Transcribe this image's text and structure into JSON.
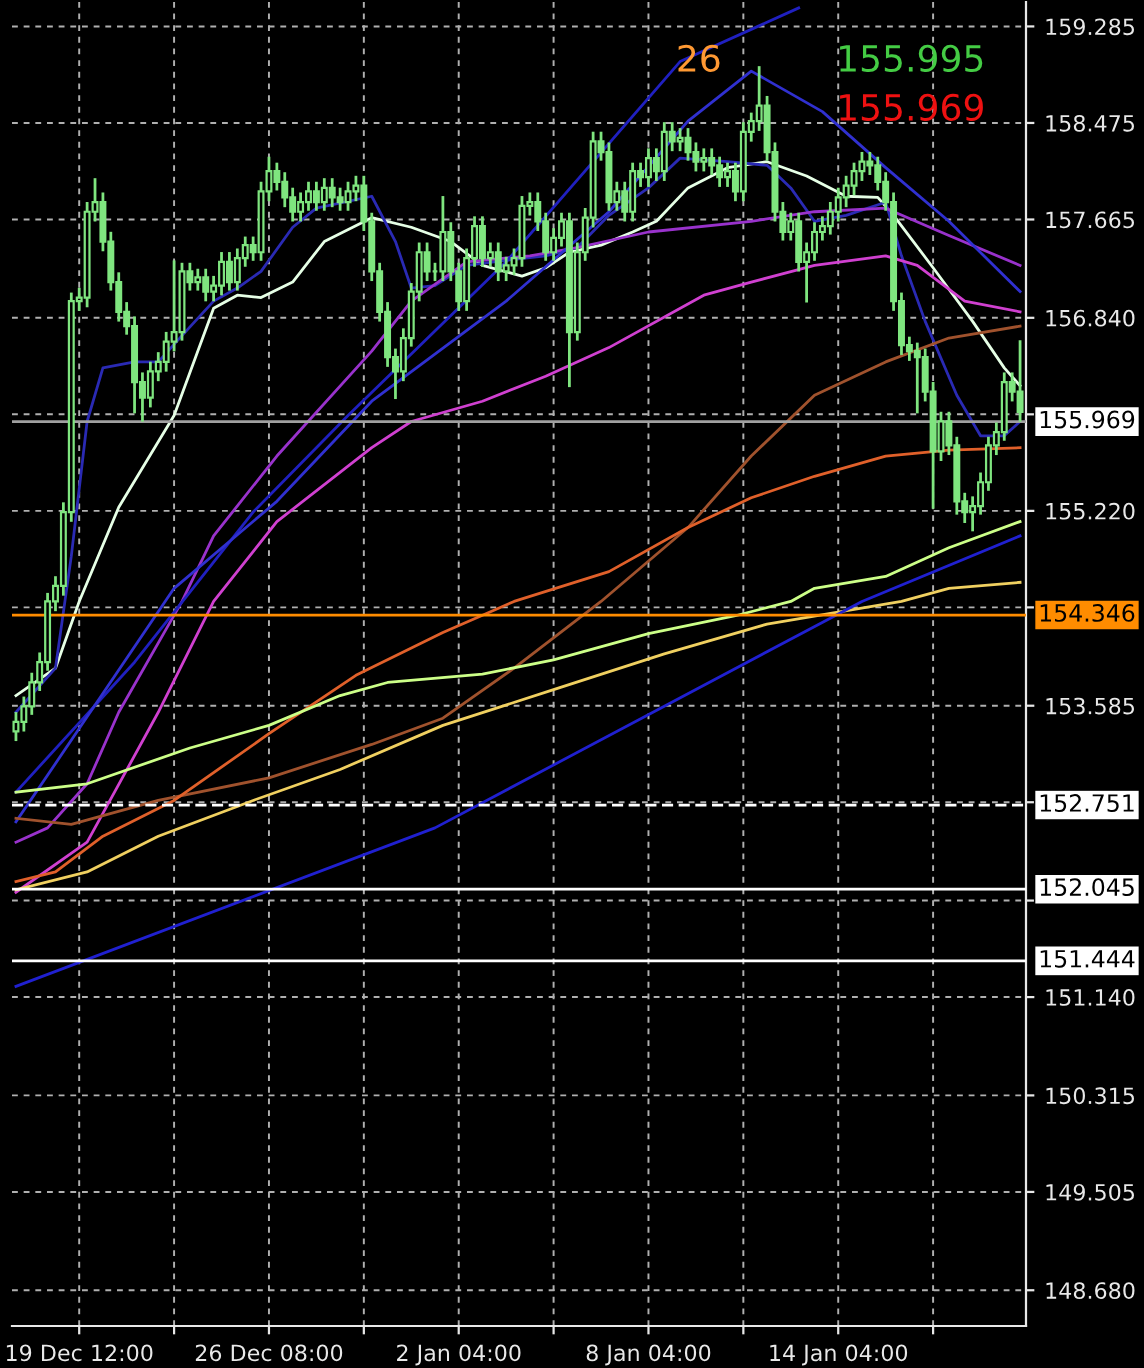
{
  "chart_data": {
    "type": "candlestick",
    "color": "#7fe57f",
    "categories": [
      null,
      null,
      null,
      null,
      null,
      null,
      null,
      null,
      "19 Dec 12:00",
      null,
      null,
      null,
      null,
      null,
      null,
      null,
      null,
      null,
      null,
      null,
      null,
      null,
      null,
      null,
      null,
      null,
      null,
      null,
      null,
      null,
      null,
      null,
      "26 Dec 08:00",
      null,
      null,
      null,
      null,
      null,
      null,
      null,
      null,
      null,
      null,
      null,
      null,
      null,
      null,
      null,
      null,
      null,
      null,
      null,
      null,
      null,
      null,
      null,
      "2 Jan 04:00",
      null,
      null,
      null,
      null,
      null,
      null,
      null,
      null,
      null,
      null,
      null,
      null,
      null,
      null,
      null,
      null,
      null,
      null,
      null,
      null,
      null,
      null,
      null,
      "8 Jan 04:00",
      null,
      null,
      null,
      null,
      null,
      null,
      null,
      null,
      null,
      null,
      null,
      null,
      null,
      null,
      null,
      null,
      null,
      null,
      null,
      null,
      null,
      null,
      null,
      "14 Jan 04:00",
      null,
      null,
      null,
      null,
      null,
      null,
      null,
      null,
      null,
      null,
      null,
      null,
      null,
      null,
      null,
      null,
      null,
      null,
      null,
      null,
      null,
      null,
      null
    ],
    "ohlc": [
      [
        153.37,
        153.52,
        153.3,
        153.45
      ],
      [
        153.45,
        153.65,
        153.38,
        153.58
      ],
      [
        153.58,
        153.85,
        153.52,
        153.78
      ],
      [
        153.78,
        154.02,
        153.72,
        153.95
      ],
      [
        153.95,
        154.52,
        153.89,
        154.46
      ],
      [
        154.46,
        154.66,
        154.39,
        154.59
      ],
      [
        154.59,
        155.28,
        154.52,
        155.21
      ],
      [
        155.21,
        157.04,
        155.14,
        156.98
      ],
      [
        156.98,
        157.08,
        156.91,
        157.01
      ],
      [
        157.01,
        157.8,
        156.94,
        157.73
      ],
      [
        157.73,
        158.0,
        157.66,
        157.81
      ],
      [
        157.81,
        157.88,
        157.41,
        157.48
      ],
      [
        157.48,
        157.55,
        157.08,
        157.14
      ],
      [
        157.14,
        157.21,
        156.82,
        156.89
      ],
      [
        156.89,
        156.96,
        156.71,
        156.77
      ],
      [
        156.77,
        156.84,
        156.05,
        156.3
      ],
      [
        156.3,
        156.37,
        155.98,
        156.17
      ],
      [
        156.17,
        156.46,
        156.1,
        156.39
      ],
      [
        156.39,
        156.54,
        156.32,
        156.47
      ],
      [
        156.47,
        156.71,
        156.4,
        156.64
      ],
      [
        156.64,
        157.31,
        156.57,
        156.72
      ],
      [
        156.72,
        157.29,
        156.66,
        157.23
      ],
      [
        157.23,
        157.29,
        157.08,
        157.14
      ],
      [
        157.14,
        157.24,
        157.08,
        157.18
      ],
      [
        157.18,
        157.24,
        156.99,
        157.06
      ],
      [
        157.06,
        157.18,
        156.99,
        157.11
      ],
      [
        157.11,
        157.38,
        157.04,
        157.31
      ],
      [
        157.31,
        157.38,
        157.08,
        157.14
      ],
      [
        157.14,
        157.41,
        157.08,
        157.34
      ],
      [
        157.34,
        157.51,
        157.28,
        157.45
      ],
      [
        157.45,
        157.51,
        157.33,
        157.39
      ],
      [
        157.39,
        157.97,
        157.33,
        157.9
      ],
      [
        157.9,
        158.18,
        157.83,
        158.07
      ],
      [
        158.07,
        158.13,
        157.92,
        157.98
      ],
      [
        157.98,
        158.05,
        157.78,
        157.85
      ],
      [
        157.85,
        157.92,
        157.66,
        157.73
      ],
      [
        157.73,
        157.88,
        157.66,
        157.81
      ],
      [
        157.81,
        157.97,
        157.75,
        157.9
      ],
      [
        157.9,
        157.97,
        157.75,
        157.81
      ],
      [
        157.81,
        158.0,
        157.75,
        157.93
      ],
      [
        157.93,
        158.0,
        157.78,
        157.85
      ],
      [
        157.85,
        157.92,
        157.75,
        157.81
      ],
      [
        157.81,
        157.97,
        157.75,
        157.9
      ],
      [
        157.9,
        158.02,
        157.83,
        157.95
      ],
      [
        157.95,
        158.02,
        157.58,
        157.65
      ],
      [
        157.65,
        157.71,
        157.16,
        157.23
      ],
      [
        157.23,
        157.29,
        156.82,
        156.89
      ],
      [
        156.89,
        156.96,
        156.44,
        156.51
      ],
      [
        156.51,
        156.57,
        156.17,
        156.39
      ],
      [
        156.39,
        156.74,
        156.32,
        156.67
      ],
      [
        156.67,
        157.12,
        156.61,
        157.06
      ],
      [
        157.06,
        157.46,
        156.99,
        157.39
      ],
      [
        157.39,
        157.46,
        157.16,
        157.23
      ],
      [
        157.23,
        157.29,
        157.16,
        157.23
      ],
      [
        157.23,
        157.85,
        157.16,
        157.56
      ],
      [
        157.56,
        157.63,
        157.16,
        157.23
      ],
      [
        157.23,
        157.29,
        156.91,
        156.98
      ],
      [
        156.98,
        157.41,
        156.91,
        157.34
      ],
      [
        157.34,
        157.68,
        157.28,
        157.61
      ],
      [
        157.61,
        157.68,
        157.28,
        157.34
      ],
      [
        157.34,
        157.46,
        157.28,
        157.39
      ],
      [
        157.39,
        157.46,
        157.16,
        157.23
      ],
      [
        157.23,
        157.34,
        157.16,
        157.28
      ],
      [
        157.28,
        157.41,
        157.21,
        157.34
      ],
      [
        157.34,
        157.85,
        157.28,
        157.78
      ],
      [
        157.78,
        157.88,
        157.71,
        157.81
      ],
      [
        157.81,
        157.88,
        157.58,
        157.65
      ],
      [
        157.65,
        157.71,
        157.33,
        157.39
      ],
      [
        157.39,
        157.58,
        157.33,
        157.51
      ],
      [
        157.51,
        157.71,
        157.45,
        157.65
      ],
      [
        157.65,
        157.71,
        156.27,
        156.72
      ],
      [
        156.72,
        157.46,
        156.66,
        157.39
      ],
      [
        157.39,
        157.75,
        157.33,
        157.68
      ],
      [
        157.68,
        158.39,
        157.61,
        158.32
      ],
      [
        158.32,
        158.39,
        158.17,
        158.23
      ],
      [
        158.23,
        158.3,
        157.75,
        157.81
      ],
      [
        157.81,
        157.97,
        157.75,
        157.9
      ],
      [
        157.9,
        157.97,
        157.66,
        157.73
      ],
      [
        157.73,
        158.13,
        157.66,
        158.07
      ],
      [
        158.07,
        158.13,
        157.95,
        158.02
      ],
      [
        158.02,
        158.25,
        157.95,
        158.18
      ],
      [
        158.18,
        158.25,
        158.0,
        158.07
      ],
      [
        158.07,
        158.47,
        158.0,
        158.4
      ],
      [
        158.4,
        158.47,
        158.25,
        158.32
      ],
      [
        158.32,
        158.42,
        158.25,
        158.35
      ],
      [
        158.35,
        158.42,
        158.17,
        158.23
      ],
      [
        158.23,
        158.3,
        158.08,
        158.15
      ],
      [
        158.15,
        158.25,
        158.08,
        158.18
      ],
      [
        158.18,
        158.25,
        158.05,
        158.12
      ],
      [
        158.12,
        158.18,
        157.95,
        158.02
      ],
      [
        158.02,
        158.13,
        157.95,
        158.07
      ],
      [
        158.07,
        158.13,
        157.83,
        157.9
      ],
      [
        157.9,
        158.47,
        157.83,
        158.4
      ],
      [
        158.4,
        158.55,
        158.33,
        158.49
      ],
      [
        158.49,
        158.94,
        158.42,
        158.62
      ],
      [
        158.62,
        158.69,
        158.17,
        158.23
      ],
      [
        158.23,
        158.3,
        157.66,
        157.73
      ],
      [
        157.73,
        157.8,
        157.5,
        157.56
      ],
      [
        157.56,
        157.71,
        157.5,
        157.65
      ],
      [
        157.65,
        157.71,
        157.24,
        157.31
      ],
      [
        157.31,
        157.46,
        156.98,
        157.39
      ],
      [
        157.39,
        157.63,
        157.33,
        157.56
      ],
      [
        157.56,
        157.68,
        157.5,
        157.61
      ],
      [
        157.61,
        157.8,
        157.55,
        157.73
      ],
      [
        157.73,
        157.92,
        157.66,
        157.85
      ],
      [
        157.85,
        158.02,
        157.78,
        157.95
      ],
      [
        157.95,
        158.13,
        157.88,
        158.07
      ],
      [
        158.07,
        158.22,
        158.0,
        158.15
      ],
      [
        158.15,
        158.22,
        158.05,
        158.12
      ],
      [
        158.12,
        158.18,
        157.92,
        157.98
      ],
      [
        157.98,
        158.05,
        157.75,
        157.81
      ],
      [
        157.81,
        157.88,
        156.91,
        156.98
      ],
      [
        156.98,
        157.04,
        156.54,
        156.61
      ],
      [
        156.61,
        156.67,
        156.49,
        156.56
      ],
      [
        156.56,
        156.62,
        156.05,
        156.51
      ],
      [
        156.51,
        156.57,
        156.15,
        156.22
      ],
      [
        156.22,
        156.29,
        155.25,
        155.72
      ],
      [
        155.72,
        156.04,
        155.65,
        155.97
      ],
      [
        155.97,
        156.04,
        155.7,
        155.77
      ],
      [
        155.77,
        155.83,
        155.2,
        155.3
      ],
      [
        155.3,
        155.36,
        155.13,
        155.21
      ],
      [
        155.21,
        155.33,
        155.06,
        155.26
      ],
      [
        155.26,
        155.53,
        155.2,
        155.46
      ],
      [
        155.46,
        155.83,
        155.4,
        155.77
      ],
      [
        155.77,
        155.95,
        155.7,
        155.88
      ],
      [
        155.88,
        156.37,
        155.82,
        156.3
      ],
      [
        156.3,
        156.37,
        156.15,
        156.22
      ],
      [
        156.22,
        156.64,
        155.98,
        156.05
      ]
    ],
    "series": [
      {
        "type": "line",
        "color": "#e6ffe6",
        "values": [
          153.67,
          null,
          null,
          null,
          null,
          153.9,
          null,
          null,
          154.46,
          null,
          null,
          null,
          null,
          155.25,
          null,
          null,
          null,
          null,
          null,
          null,
          156.02,
          null,
          null,
          null,
          null,
          156.92,
          null,
          null,
          157.03,
          null,
          null,
          157.01,
          null,
          null,
          null,
          157.14,
          null,
          null,
          null,
          157.48,
          null,
          null,
          null,
          null,
          null,
          157.68,
          null,
          null,
          null,
          null,
          157.6,
          null,
          null,
          null,
          null,
          157.48,
          null,
          null,
          null,
          157.28,
          null,
          null,
          null,
          null,
          157.19,
          null,
          null,
          157.26,
          null,
          null,
          157.39,
          null,
          null,
          null,
          157.45,
          null,
          null,
          null,
          157.56,
          null,
          null,
          157.65,
          null,
          null,
          null,
          157.93,
          null,
          null,
          null,
          null,
          158.1,
          null,
          null,
          null,
          null,
          158.15,
          null,
          null,
          null,
          null,
          158.03,
          null,
          null,
          null,
          null,
          157.86,
          null,
          null,
          null,
          157.85,
          null,
          157.7,
          null,
          null,
          null,
          null,
          157.26,
          null,
          null,
          null,
          null,
          156.81,
          null,
          null,
          null,
          156.42,
          null,
          156.27
        ]
      },
      {
        "type": "line",
        "color": "#2a2ab4",
        "values": [
          153.53,
          null,
          null,
          null,
          null,
          153.9,
          null,
          154.84,
          null,
          155.97,
          null,
          156.42,
          null,
          null,
          null,
          156.47,
          null,
          null,
          156.47,
          null,
          null,
          156.69,
          null,
          null,
          null,
          156.98,
          null,
          null,
          157.09,
          null,
          null,
          157.23,
          null,
          null,
          null,
          157.6,
          null,
          null,
          157.76,
          null,
          null,
          null,
          null,
          null,
          null,
          157.86,
          null,
          null,
          157.48,
          null,
          157.09,
          null,
          null,
          157.11,
          null,
          null,
          null,
          157.28,
          null,
          null,
          null,
          null,
          null,
          157.33,
          null,
          null,
          null,
          157.36,
          null,
          null,
          null,
          157.43,
          null,
          null,
          null,
          157.7,
          null,
          null,
          null,
          null,
          157.93,
          null,
          null,
          null,
          158.18,
          null,
          null,
          null,
          null,
          null,
          158.15,
          null,
          null,
          null,
          null,
          158.12,
          null,
          null,
          157.93,
          null,
          null,
          157.65,
          null,
          null,
          null,
          157.7,
          null,
          null,
          null,
          null,
          157.81,
          null,
          157.36,
          null,
          null,
          156.81,
          null,
          null,
          null,
          156.19,
          null,
          null,
          155.85,
          null,
          null,
          155.85,
          null,
          155.97
        ]
      },
      {
        "type": "line",
        "color": "#9932cc",
        "values": [
          152.44,
          null,
          null,
          null,
          152.56,
          null,
          null,
          null,
          null,
          152.93,
          null,
          null,
          null,
          153.53,
          null,
          null,
          null,
          null,
          null,
          null,
          null,
          154.46,
          null,
          null,
          null,
          155.01,
          null,
          null,
          null,
          null,
          null,
          null,
          null,
          155.68,
          null,
          null,
          null,
          null,
          null,
          null,
          null,
          null,
          null,
          null,
          null,
          156.56,
          null,
          null,
          null,
          null,
          156.98,
          null,
          null,
          null,
          null,
          null,
          null,
          157.31,
          null,
          null,
          null,
          null,
          null,
          null,
          null,
          157.36,
          null,
          null,
          null,
          null,
          null,
          157.43,
          null,
          null,
          null,
          null,
          null,
          null,
          null,
          null,
          157.56,
          null,
          null,
          null,
          null,
          null,
          null,
          null,
          null,
          null,
          null,
          null,
          null,
          157.65,
          null,
          null,
          null,
          null,
          null,
          null,
          null,
          157.73,
          null,
          null,
          null,
          null,
          null,
          null,
          null,
          null,
          157.76,
          null,
          null,
          null,
          null,
          null,
          null,
          null,
          157.53,
          null,
          null,
          null,
          null,
          null,
          null,
          null,
          null,
          157.28
        ]
      },
      {
        "type": "line",
        "color": "#d040d0",
        "values": [
          152.02,
          null,
          null,
          null,
          null,
          null,
          null,
          null,
          null,
          152.44,
          null,
          null,
          null,
          null,
          null,
          null,
          null,
          null,
          153.53,
          null,
          null,
          null,
          null,
          null,
          null,
          154.46,
          null,
          null,
          null,
          null,
          null,
          null,
          null,
          155.13,
          null,
          null,
          null,
          null,
          null,
          null,
          null,
          null,
          null,
          null,
          null,
          155.75,
          null,
          null,
          null,
          null,
          155.97,
          null,
          null,
          null,
          null,
          null,
          null,
          null,
          null,
          156.14,
          null,
          null,
          null,
          null,
          null,
          null,
          null,
          156.35,
          null,
          null,
          null,
          null,
          null,
          null,
          null,
          156.59,
          null,
          null,
          null,
          null,
          null,
          null,
          null,
          null,
          null,
          null,
          null,
          157.03,
          null,
          null,
          null,
          null,
          null,
          157.14,
          null,
          null,
          null,
          null,
          null,
          null,
          null,
          157.28,
          null,
          null,
          null,
          null,
          null,
          null,
          null,
          null,
          157.36,
          null,
          null,
          null,
          157.28,
          null,
          null,
          null,
          null,
          null,
          156.98,
          null,
          null,
          null,
          null,
          null,
          null,
          156.89
        ]
      },
      {
        "type": "line",
        "color": "#2020c0",
        "values": [
          152.86,
          null,
          null,
          null,
          null,
          null,
          null,
          null,
          null,
          null,
          null,
          null,
          null,
          null,
          null,
          153.95,
          null,
          null,
          null,
          null,
          null,
          null,
          null,
          null,
          null,
          null,
          null,
          null,
          null,
          null,
          155.21,
          null,
          null,
          null,
          null,
          null,
          null,
          null,
          null,
          null,
          null,
          null,
          156.02,
          null,
          null,
          null,
          null,
          null,
          null,
          null,
          null,
          null,
          null,
          null,
          null,
          null,
          null,
          null,
          null,
          null,
          null,
          null,
          157.31,
          null,
          null,
          null,
          null,
          null,
          null,
          null,
          null,
          null,
          null,
          null,
          null,
          null,
          null,
          null,
          null,
          null,
          null,
          null,
          null,
          null,
          158.99,
          null,
          null,
          null,
          null,
          null,
          null,
          null,
          null,
          null,
          null,
          null,
          null,
          null,
          null,
          159.44,
          null,
          null,
          null,
          null,
          null,
          null,
          null,
          null,
          null,
          null,
          null,
          null,
          null,
          null,
          null,
          null,
          null,
          null,
          null,
          null,
          null,
          null,
          null,
          null,
          null,
          null,
          null,
          null
        ]
      },
      {
        "type": "line",
        "color": "#3030d0",
        "values": [
          152.61,
          null,
          null,
          null,
          null,
          null,
          null,
          null,
          null,
          null,
          null,
          null,
          null,
          null,
          null,
          null,
          null,
          null,
          null,
          null,
          154.57,
          null,
          null,
          null,
          null,
          null,
          null,
          null,
          null,
          null,
          null,
          null,
          null,
          155.3,
          null,
          null,
          null,
          null,
          null,
          null,
          null,
          null,
          null,
          null,
          null,
          156.14,
          null,
          null,
          null,
          null,
          null,
          null,
          null,
          null,
          null,
          null,
          null,
          null,
          null,
          null,
          null,
          null,
          156.98,
          null,
          null,
          null,
          null,
          null,
          null,
          null,
          null,
          null,
          null,
          null,
          null,
          157.73,
          null,
          null,
          null,
          null,
          null,
          null,
          null,
          null,
          null,
          158.49,
          null,
          null,
          null,
          null,
          null,
          null,
          null,
          158.91,
          null,
          null,
          null,
          null,
          null,
          null,
          null,
          null,
          158.57,
          null,
          null,
          null,
          null,
          null,
          null,
          null,
          158.1,
          null,
          null,
          null,
          null,
          null,
          null,
          null,
          157.65,
          null,
          null,
          null,
          null,
          null,
          null,
          null,
          null,
          157.06
        ]
      },
      {
        "type": "line",
        "color": "#a0522d",
        "values": [
          152.64,
          null,
          null,
          null,
          null,
          null,
          null,
          152.59,
          null,
          null,
          null,
          null,
          null,
          null,
          null,
          null,
          null,
          null,
          152.79,
          null,
          null,
          null,
          null,
          null,
          null,
          null,
          null,
          null,
          null,
          null,
          null,
          null,
          152.98,
          null,
          null,
          null,
          null,
          null,
          null,
          null,
          null,
          null,
          null,
          null,
          null,
          153.26,
          null,
          null,
          null,
          null,
          null,
          null,
          null,
          null,
          153.48,
          null,
          null,
          null,
          null,
          null,
          null,
          null,
          null,
          153.9,
          null,
          null,
          null,
          null,
          null,
          null,
          null,
          null,
          null,
          null,
          154.46,
          null,
          null,
          null,
          null,
          null,
          null,
          null,
          null,
          null,
          null,
          155.08,
          null,
          null,
          null,
          null,
          null,
          null,
          null,
          155.68,
          null,
          null,
          null,
          null,
          null,
          null,
          null,
          156.19,
          null,
          null,
          null,
          null,
          null,
          null,
          null,
          null,
          156.47,
          null,
          null,
          null,
          null,
          null,
          null,
          null,
          156.67,
          null,
          null,
          null,
          null,
          null,
          null,
          null,
          null,
          156.77
        ]
      },
      {
        "type": "line",
        "color": "#e0602a",
        "values": [
          152.11,
          null,
          null,
          null,
          null,
          152.19,
          null,
          null,
          null,
          null,
          null,
          152.49,
          null,
          null,
          null,
          null,
          null,
          null,
          null,
          null,
          152.79,
          null,
          null,
          null,
          null,
          null,
          null,
          null,
          null,
          null,
          null,
          null,
          153.35,
          null,
          null,
          null,
          null,
          null,
          null,
          null,
          null,
          null,
          null,
          153.84,
          null,
          null,
          null,
          null,
          null,
          null,
          null,
          null,
          null,
          null,
          154.2,
          null,
          null,
          null,
          null,
          null,
          null,
          null,
          null,
          154.46,
          null,
          null,
          null,
          null,
          null,
          null,
          null,
          null,
          null,
          null,
          null,
          154.71,
          null,
          null,
          null,
          null,
          null,
          null,
          null,
          null,
          null,
          155.08,
          null,
          null,
          null,
          null,
          null,
          null,
          null,
          155.33,
          null,
          null,
          null,
          null,
          null,
          null,
          null,
          155.51,
          null,
          null,
          null,
          null,
          null,
          null,
          null,
          null,
          155.68,
          null,
          null,
          null,
          null,
          null,
          null,
          null,
          155.73,
          null,
          null,
          null,
          null,
          null,
          null,
          null,
          null,
          155.75
        ]
      },
      {
        "type": "line",
        "color": "#ccff88",
        "values": [
          152.86,
          null,
          null,
          null,
          null,
          null,
          null,
          null,
          null,
          152.93,
          null,
          null,
          null,
          null,
          null,
          null,
          null,
          null,
          null,
          null,
          null,
          null,
          153.23,
          null,
          null,
          null,
          null,
          null,
          null,
          null,
          null,
          null,
          153.42,
          null,
          null,
          null,
          null,
          null,
          null,
          null,
          null,
          153.67,
          null,
          null,
          null,
          null,
          null,
          153.78,
          null,
          null,
          null,
          null,
          null,
          null,
          null,
          null,
          null,
          null,
          null,
          153.85,
          null,
          null,
          null,
          null,
          null,
          null,
          null,
          null,
          153.97,
          null,
          null,
          null,
          null,
          null,
          null,
          null,
          null,
          null,
          null,
          null,
          154.19,
          null,
          null,
          null,
          null,
          null,
          null,
          null,
          null,
          null,
          null,
          154.34,
          null,
          null,
          null,
          null,
          null,
          null,
          154.46,
          null,
          null,
          154.57,
          null,
          null,
          null,
          null,
          null,
          null,
          null,
          null,
          154.67,
          null,
          null,
          null,
          null,
          null,
          null,
          null,
          154.91,
          null,
          null,
          null,
          null,
          null,
          null,
          null,
          null,
          155.13
        ]
      },
      {
        "type": "line",
        "color": "#f0d060",
        "values": [
          152.04,
          null,
          null,
          null,
          null,
          null,
          null,
          null,
          null,
          152.19,
          null,
          null,
          null,
          null,
          null,
          null,
          null,
          null,
          152.49,
          null,
          null,
          null,
          null,
          null,
          null,
          null,
          null,
          null,
          null,
          null,
          152.79,
          null,
          null,
          null,
          null,
          null,
          null,
          null,
          null,
          null,
          null,
          153.05,
          null,
          null,
          null,
          null,
          null,
          null,
          null,
          null,
          null,
          null,
          null,
          null,
          153.42,
          null,
          null,
          null,
          null,
          null,
          null,
          null,
          null,
          null,
          null,
          null,
          null,
          null,
          153.72,
          null,
          null,
          null,
          null,
          null,
          null,
          null,
          null,
          null,
          null,
          null,
          null,
          null,
          154.02,
          null,
          null,
          null,
          null,
          null,
          null,
          null,
          null,
          null,
          null,
          null,
          null,
          154.27,
          null,
          null,
          null,
          null,
          null,
          null,
          null,
          null,
          null,
          null,
          null,
          null,
          null,
          null,
          null,
          null,
          154.46,
          null,
          null,
          null,
          null,
          null,
          154.57,
          null,
          null,
          null,
          null,
          null,
          null,
          null,
          null,
          154.62
        ]
      },
      {
        "type": "line",
        "color": "#2020d0",
        "values": [
          151.23,
          null,
          null,
          null,
          null,
          null,
          null,
          null,
          null,
          null,
          null,
          null,
          null,
          null,
          null,
          null,
          null,
          null,
          null,
          null,
          null,
          null,
          null,
          null,
          null,
          null,
          null,
          null,
          null,
          null,
          null,
          null,
          null,
          null,
          null,
          null,
          null,
          null,
          null,
          null,
          null,
          null,
          null,
          null,
          null,
          null,
          null,
          null,
          null,
          null,
          null,
          null,
          null,
          152.56,
          null,
          null,
          null,
          null,
          null,
          null,
          null,
          null,
          null,
          null,
          null,
          null,
          null,
          null,
          null,
          null,
          null,
          null,
          null,
          null,
          null,
          null,
          null,
          null,
          null,
          null,
          null,
          null,
          null,
          null,
          null,
          null,
          null,
          null,
          null,
          null,
          null,
          null,
          null,
          null,
          null,
          null,
          null,
          null,
          null,
          null,
          null,
          null,
          null,
          null,
          null,
          null,
          null,
          154.46,
          null,
          null,
          null,
          null,
          null,
          null,
          null,
          null,
          null,
          null,
          null,
          null,
          null,
          null,
          null,
          null,
          null,
          null,
          null,
          155.01
        ]
      }
    ],
    "ylim": [
      148.38,
      159.49
    ],
    "yticks": [
      159.285,
      158.475,
      157.665,
      {
        "value": 156.84,
        "label": "156.840"
      },
      {
        "value": 156.03,
        "label": null
      },
      {
        "value": 155.22,
        "label": "155.220"
      },
      {
        "value": 154.41,
        "label": null
      },
      153.585,
      {
        "value": 152.775,
        "label": null
      },
      {
        "value": 151.95,
        "label": null
      },
      {
        "value": 151.14,
        "label": "151.140"
      },
      150.315,
      149.505,
      {
        "value": 148.68,
        "label": "148.680"
      }
    ],
    "ref_lines": [
      {
        "axis": "y",
        "value": 155.969,
        "label": "155.969",
        "color": "#a0a0a0",
        "line_style": "solid"
      },
      {
        "axis": "y",
        "value": 154.346,
        "label": "154.346",
        "color": "#ff8c00",
        "line_style": "solid"
      },
      {
        "axis": "y",
        "value": 152.751,
        "label": "152.751",
        "color": "#ffffff",
        "line_style": "dashed"
      },
      {
        "axis": "y",
        "value": 152.045,
        "label": "152.045",
        "color": "#ffffff",
        "line_style": "solid"
      },
      {
        "axis": "y",
        "value": 151.444,
        "label": "151.444",
        "color": "#ffffff",
        "line_style": "solid"
      }
    ],
    "annotations": [
      "26",
      "155.995",
      "155.969"
    ],
    "grid": true
  }
}
